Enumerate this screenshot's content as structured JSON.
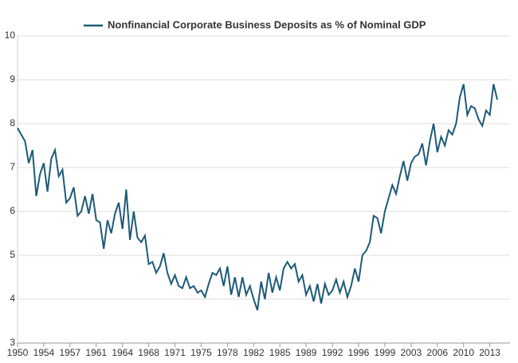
{
  "chart_data": {
    "type": "line",
    "series": [
      {
        "name": "Nonfinancial Corporate Business Deposits as % of Nominal GDP",
        "color": "#1d5a78",
        "x": [
          1950,
          1950.5,
          1951,
          1951.5,
          1952,
          1952.5,
          1953,
          1953.5,
          1954,
          1954.5,
          1955,
          1955.5,
          1956,
          1956.5,
          1957,
          1957.5,
          1958,
          1958.5,
          1959,
          1959.5,
          1960,
          1960.5,
          1961,
          1961.5,
          1962,
          1962.5,
          1963,
          1963.5,
          1964,
          1964.5,
          1965,
          1965.5,
          1966,
          1966.5,
          1967,
          1967.5,
          1968,
          1968.5,
          1969,
          1969.5,
          1970,
          1970.5,
          1971,
          1971.5,
          1972,
          1972.5,
          1973,
          1973.5,
          1974,
          1974.5,
          1975,
          1975.5,
          1976,
          1976.5,
          1977,
          1977.5,
          1978,
          1978.5,
          1979,
          1979.5,
          1980,
          1980.5,
          1981,
          1981.5,
          1982,
          1982.5,
          1983,
          1983.5,
          1984,
          1984.5,
          1985,
          1985.5,
          1986,
          1986.5,
          1987,
          1987.5,
          1988,
          1988.5,
          1989,
          1989.5,
          1990,
          1990.5,
          1991,
          1991.5,
          1992,
          1992.5,
          1993,
          1993.5,
          1994,
          1994.5,
          1995,
          1995.5,
          1996,
          1996.5,
          1997,
          1997.5,
          1998,
          1998.5,
          1999,
          1999.5,
          2000,
          2000.5,
          2001,
          2001.5,
          2002,
          2002.5,
          2003,
          2003.5,
          2004,
          2004.5,
          2005,
          2005.5,
          2006,
          2006.5,
          2007,
          2007.5,
          2008,
          2008.5,
          2009,
          2009.5,
          2010,
          2010.5,
          2011,
          2011.5,
          2012,
          2012.5,
          2013,
          2013.5,
          2014
        ],
        "values": [
          7.9,
          7.75,
          7.6,
          7.1,
          7.4,
          6.35,
          6.85,
          7.1,
          6.45,
          7.2,
          7.4,
          6.8,
          6.95,
          6.2,
          6.3,
          6.55,
          5.9,
          6.0,
          6.35,
          5.95,
          6.4,
          5.8,
          5.75,
          5.15,
          5.8,
          5.5,
          5.95,
          6.2,
          5.6,
          6.5,
          5.35,
          6.0,
          5.4,
          5.3,
          5.45,
          4.8,
          4.85,
          4.6,
          4.75,
          5.05,
          4.6,
          4.35,
          4.55,
          4.3,
          4.25,
          4.5,
          4.25,
          4.3,
          4.15,
          4.2,
          4.05,
          4.35,
          4.6,
          4.55,
          4.7,
          4.3,
          4.75,
          4.1,
          4.5,
          4.05,
          4.5,
          4.1,
          4.3,
          4.0,
          3.75,
          4.4,
          4.0,
          4.6,
          4.15,
          4.5,
          4.2,
          4.7,
          4.85,
          4.7,
          4.8,
          4.4,
          4.55,
          4.1,
          4.3,
          3.95,
          4.35,
          3.9,
          4.35,
          4.1,
          4.2,
          4.45,
          4.15,
          4.4,
          4.05,
          4.3,
          4.7,
          4.4,
          5.0,
          5.1,
          5.3,
          5.9,
          5.85,
          5.5,
          6.0,
          6.3,
          6.6,
          6.4,
          6.8,
          7.15,
          6.7,
          7.1,
          7.25,
          7.3,
          7.55,
          7.05,
          7.6,
          8.0,
          7.35,
          7.7,
          7.5,
          7.85,
          7.75,
          8.0,
          8.6,
          8.9,
          8.2,
          8.4,
          8.35,
          8.1,
          7.95,
          8.3,
          8.2,
          8.9,
          8.55
        ]
      }
    ],
    "xlim": [
      1950,
      2015.7
    ],
    "xticks": [
      1950,
      {
        "value": 1953.5,
        "label": "1954"
      },
      1957,
      {
        "value": 1960.5,
        "label": "1961"
      },
      1964,
      {
        "value": 1967.5,
        "label": "1968"
      },
      1971,
      {
        "value": 1974.5,
        "label": "1975"
      },
      1978,
      {
        "value": 1981.5,
        "label": "1982"
      },
      1985,
      {
        "value": 1988.5,
        "label": "1989"
      },
      1992,
      {
        "value": 1995.5,
        "label": "1996"
      },
      1999,
      {
        "value": 2002.5,
        "label": "2003"
      },
      2006,
      {
        "value": 2009.5,
        "label": "2010"
      },
      2013
    ],
    "ylim": [
      3,
      10
    ],
    "yticks": [
      3,
      4,
      5,
      6,
      7,
      8,
      9,
      10
    ],
    "grid": true,
    "legend": "top"
  }
}
